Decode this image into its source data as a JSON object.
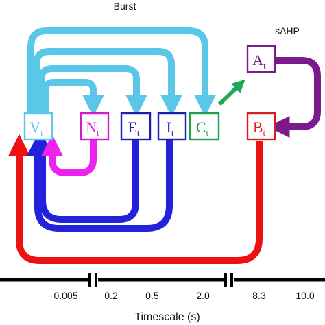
{
  "headings": {
    "burst": "Burst",
    "sahp": "sAHP"
  },
  "nodes": {
    "V": {
      "main": "V",
      "sub": "t",
      "color": "#5bc7e8"
    },
    "N": {
      "main": "N",
      "sub": "t",
      "color": "#d11bd1"
    },
    "E": {
      "main": "E",
      "sub": "t",
      "color": "#1c20b0"
    },
    "I": {
      "main": "I",
      "sub": "t",
      "color": "#1c20b0"
    },
    "C": {
      "main": "C",
      "sub": "t",
      "color": "#1e9e4a"
    },
    "A": {
      "main": "A",
      "sub": "t",
      "color": "#7a1a8c"
    },
    "B": {
      "main": "B",
      "sub": "t",
      "color": "#d42020"
    }
  },
  "colors": {
    "cyan": "#5bc7e8",
    "magenta": "#ee22ee",
    "blue": "#2222dd",
    "green": "#1fa858",
    "purple": "#7a1a8c",
    "red": "#ee1111",
    "axis": "#000000"
  },
  "timescale": {
    "ticks": [
      "0.005",
      "0.2",
      "0.5",
      "2.0",
      "8.3",
      "10.0"
    ],
    "title": "Timescale (s)"
  }
}
